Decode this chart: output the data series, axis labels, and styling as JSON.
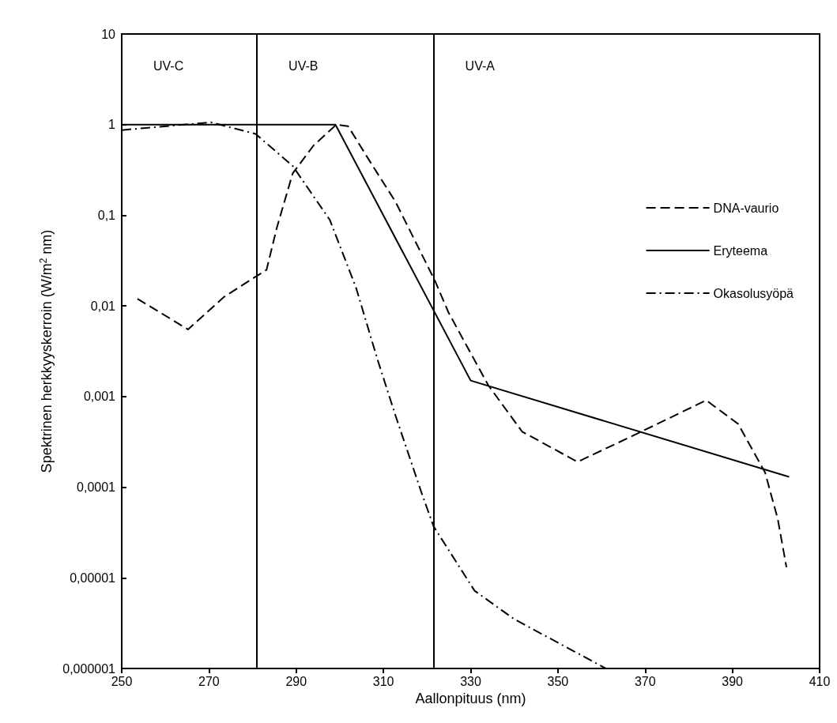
{
  "chart_data": {
    "type": "line",
    "xlabel": "Aallonpituus (nm)",
    "ylabel": "Spektrinen herkkyyskerroin (W/m$^{2}$ nm)",
    "log": "y",
    "grid": false,
    "legend": "right",
    "marker": "none",
    "xlim": [
      250,
      410
    ],
    "xticks": [
      250,
      270,
      290,
      310,
      330,
      350,
      370,
      390,
      410
    ],
    "ylim": [
      1e-06,
      10
    ],
    "yticks": [
      {
        "value": 1e-06,
        "label": "0,000001"
      },
      {
        "value": 1e-05,
        "label": "0,00001"
      },
      {
        "value": 0.0001,
        "label": "0,0001"
      },
      {
        "value": 0.001,
        "label": "0,001"
      },
      {
        "value": 0.01,
        "label": "0,01"
      },
      {
        "value": 0.1,
        "label": "0,1"
      },
      1,
      10
    ],
    "series": [
      {
        "name": "DNA-vaurio",
        "color": "#000000",
        "line_style": "dashed",
        "x": [
          253.6,
          265.2,
          273.4,
          280.7,
          283.2,
          285.6,
          289.2,
          294,
          299.2,
          301.9,
          306.8,
          312.8,
          321.8,
          324.9,
          334,
          341.8,
          354.5,
          367.2,
          384,
          391.3,
          397.5,
          400.4,
          402.4
        ],
        "values": [
          0.012,
          0.0055,
          0.0125,
          0.021,
          0.025,
          0.074,
          0.29,
          0.59,
          1,
          0.96,
          0.4,
          0.14,
          0.019,
          0.0085,
          0.00134,
          0.00041,
          0.00019,
          0.00037,
          0.00091,
          0.0005,
          0.000145,
          4.47e-05,
          1.31e-05
        ]
      },
      {
        "name": "Eryteema",
        "color": "#000000",
        "line_style": "solid",
        "x": [
          250,
          299,
          330,
          403
        ],
        "values": [
          1,
          1,
          0.0015,
          0.00013
        ]
      },
      {
        "name": "Okasolusyöpä",
        "color": "#000000",
        "line_style": "dashdot",
        "x": [
          250,
          264.3,
          270.5,
          280.7,
          289.2,
          297.7,
          303.7,
          308.6,
          312.8,
          318.8,
          321.5,
          330.9,
          340,
          361
        ],
        "values": [
          0.87,
          1,
          1.06,
          0.79,
          0.35,
          0.089,
          0.016,
          0.0026,
          0.00061,
          8.5e-05,
          3.7e-05,
          7.2e-06,
          3.5e-06,
          1e-06
        ]
      }
    ],
    "ref_lines": [
      {
        "axis": "x",
        "value": 281,
        "color": "#000000"
      },
      {
        "axis": "x",
        "value": 321.5,
        "color": "#000000"
      }
    ],
    "annotations": [
      "UV-C",
      "UV-B",
      "UV-A"
    ]
  }
}
